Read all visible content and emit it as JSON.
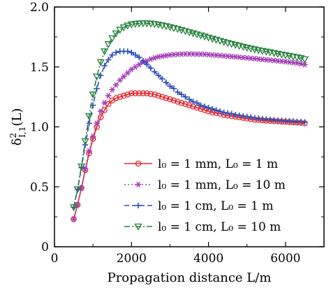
{
  "chart_data": {
    "type": "line",
    "xlabel": "Propagation distance L/m",
    "ylabel": "δ²I,1(L)",
    "xlim": [
      0,
      7000
    ],
    "ylim": [
      0,
      2.0
    ],
    "xticks": [
      0,
      2000,
      4000,
      6000
    ],
    "yticks": [
      0,
      0.5,
      1.0,
      1.5,
      2.0
    ],
    "xtick_labels": [
      "0",
      "2000",
      "4000",
      "6000"
    ],
    "ytick_labels": [
      "0",
      "0.5",
      "1.0",
      "1.5",
      "2.0"
    ],
    "x": [
      500,
      600,
      700,
      800,
      900,
      1000,
      1100,
      1200,
      1300,
      1400,
      1500,
      1600,
      1700,
      1800,
      1900,
      2000,
      2100,
      2200,
      2300,
      2400,
      2500,
      2600,
      2700,
      2800,
      2900,
      3000,
      3100,
      3200,
      3300,
      3400,
      3500,
      3600,
      3700,
      3800,
      3900,
      4000,
      4100,
      4200,
      4300,
      4400,
      4500,
      4600,
      4700,
      4800,
      4900,
      5000,
      5100,
      5200,
      5300,
      5400,
      5500,
      5600,
      5700,
      5800,
      5900,
      6000,
      6100,
      6200,
      6300,
      6400,
      6500
    ],
    "legend_position": "lower-right",
    "series": [
      {
        "name": "l₀ = 1 mm, L₀ = 1 m",
        "color": "#e8262d",
        "marker": "circle",
        "dash": "solid",
        "values": [
          0.23,
          0.35,
          0.49,
          0.64,
          0.78,
          0.9,
          1.0,
          1.08,
          1.14,
          1.19,
          1.22,
          1.24,
          1.25,
          1.26,
          1.27,
          1.28,
          1.28,
          1.28,
          1.28,
          1.28,
          1.275,
          1.27,
          1.26,
          1.25,
          1.24,
          1.23,
          1.22,
          1.21,
          1.2,
          1.19,
          1.18,
          1.17,
          1.16,
          1.15,
          1.14,
          1.13,
          1.12,
          1.115,
          1.11,
          1.1,
          1.095,
          1.09,
          1.085,
          1.08,
          1.075,
          1.07,
          1.065,
          1.06,
          1.058,
          1.055,
          1.052,
          1.05,
          1.048,
          1.046,
          1.044,
          1.042,
          1.04,
          1.038,
          1.036,
          1.034,
          1.03
        ]
      },
      {
        "name": "l₀ = 1 mm, L₀ = 10 m",
        "color": "#a53fb8",
        "marker": "star",
        "dash": "dot",
        "values": [
          0.23,
          0.35,
          0.49,
          0.65,
          0.8,
          0.92,
          1.03,
          1.13,
          1.2,
          1.26,
          1.31,
          1.35,
          1.39,
          1.42,
          1.45,
          1.48,
          1.5,
          1.52,
          1.54,
          1.55,
          1.565,
          1.575,
          1.585,
          1.59,
          1.595,
          1.6,
          1.603,
          1.605,
          1.607,
          1.608,
          1.608,
          1.608,
          1.607,
          1.606,
          1.605,
          1.603,
          1.6,
          1.598,
          1.595,
          1.592,
          1.59,
          1.587,
          1.584,
          1.581,
          1.578,
          1.575,
          1.572,
          1.569,
          1.566,
          1.563,
          1.56,
          1.557,
          1.554,
          1.55,
          1.547,
          1.544,
          1.54,
          1.536,
          1.532,
          1.526,
          1.52
        ]
      },
      {
        "name": "l₀ = 1 cm, L₀ = 1 m",
        "color": "#2b4fb8",
        "marker": "plus",
        "dash": "dash",
        "values": [
          0.33,
          0.48,
          0.66,
          0.85,
          1.03,
          1.18,
          1.32,
          1.43,
          1.51,
          1.56,
          1.6,
          1.62,
          1.63,
          1.63,
          1.63,
          1.62,
          1.6,
          1.58,
          1.55,
          1.52,
          1.49,
          1.46,
          1.43,
          1.4,
          1.37,
          1.34,
          1.32,
          1.29,
          1.27,
          1.25,
          1.23,
          1.21,
          1.2,
          1.18,
          1.17,
          1.16,
          1.15,
          1.14,
          1.13,
          1.12,
          1.115,
          1.11,
          1.1,
          1.095,
          1.09,
          1.085,
          1.08,
          1.075,
          1.07,
          1.067,
          1.064,
          1.061,
          1.058,
          1.055,
          1.052,
          1.05,
          1.048,
          1.046,
          1.044,
          1.042,
          1.04
        ]
      },
      {
        "name": "l₀ = 1 cm, L₀ = 10 m",
        "color": "#24803b",
        "marker": "triangle-down",
        "dash": "dashdot",
        "values": [
          0.33,
          0.48,
          0.67,
          0.88,
          1.09,
          1.27,
          1.42,
          1.54,
          1.63,
          1.69,
          1.74,
          1.78,
          1.81,
          1.83,
          1.845,
          1.855,
          1.86,
          1.863,
          1.864,
          1.864,
          1.862,
          1.858,
          1.853,
          1.847,
          1.84,
          1.833,
          1.825,
          1.817,
          1.808,
          1.799,
          1.79,
          1.781,
          1.772,
          1.763,
          1.754,
          1.745,
          1.736,
          1.727,
          1.718,
          1.709,
          1.7,
          1.692,
          1.684,
          1.676,
          1.668,
          1.661,
          1.654,
          1.647,
          1.64,
          1.634,
          1.628,
          1.622,
          1.616,
          1.61,
          1.604,
          1.598,
          1.592,
          1.586,
          1.58,
          1.574,
          1.565
        ]
      }
    ]
  }
}
